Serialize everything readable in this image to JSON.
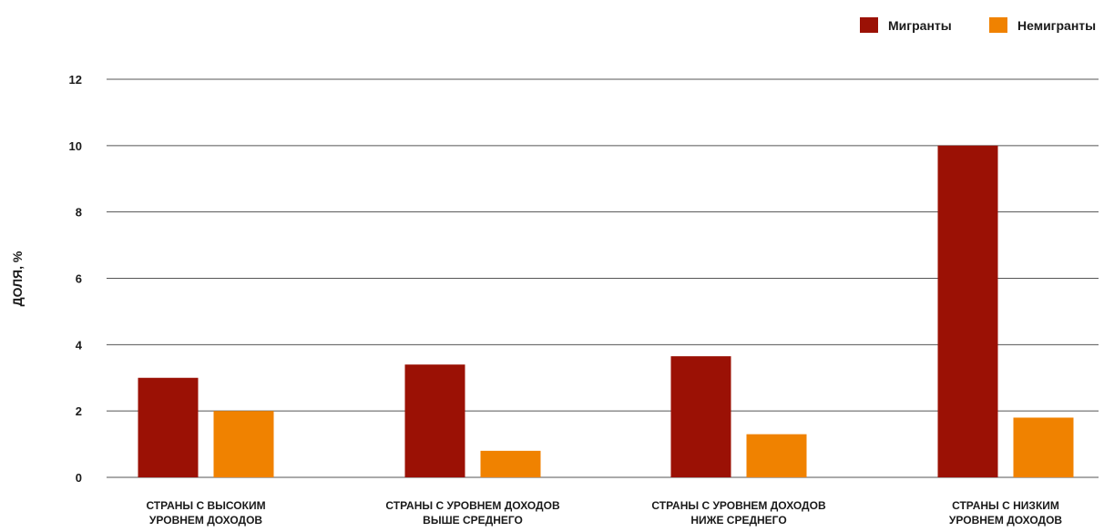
{
  "chart_data": {
    "type": "bar",
    "categories": [
      [
        "СТРАНЫ С ВЫСОКИМ",
        "УРОВНЕМ ДОХОДОВ"
      ],
      [
        "СТРАНЫ С УРОВНЕМ ДОХОДОВ",
        "ВЫШЕ СРЕДНЕГО"
      ],
      [
        "СТРАНЫ С УРОВНЕМ ДОХОДОВ",
        "НИЖЕ СРЕДНЕГО"
      ],
      [
        "СТРАНЫ С НИЗКИМ",
        "УРОВНЕМ ДОХОДОВ"
      ]
    ],
    "series": [
      {
        "name": "Мигранты",
        "color": "#9b1105",
        "values": [
          3.0,
          3.4,
          3.65,
          10.0
        ]
      },
      {
        "name": "Немигранты",
        "color": "#f08200",
        "values": [
          2.0,
          0.8,
          1.3,
          1.8
        ]
      }
    ],
    "title": "",
    "xlabel": "",
    "ylabel": "ДОЛЯ, %",
    "ylim": [
      0,
      12
    ],
    "yticks": [
      0,
      2,
      4,
      6,
      8,
      10,
      12
    ],
    "grid": true,
    "legend_position": "top-right"
  }
}
